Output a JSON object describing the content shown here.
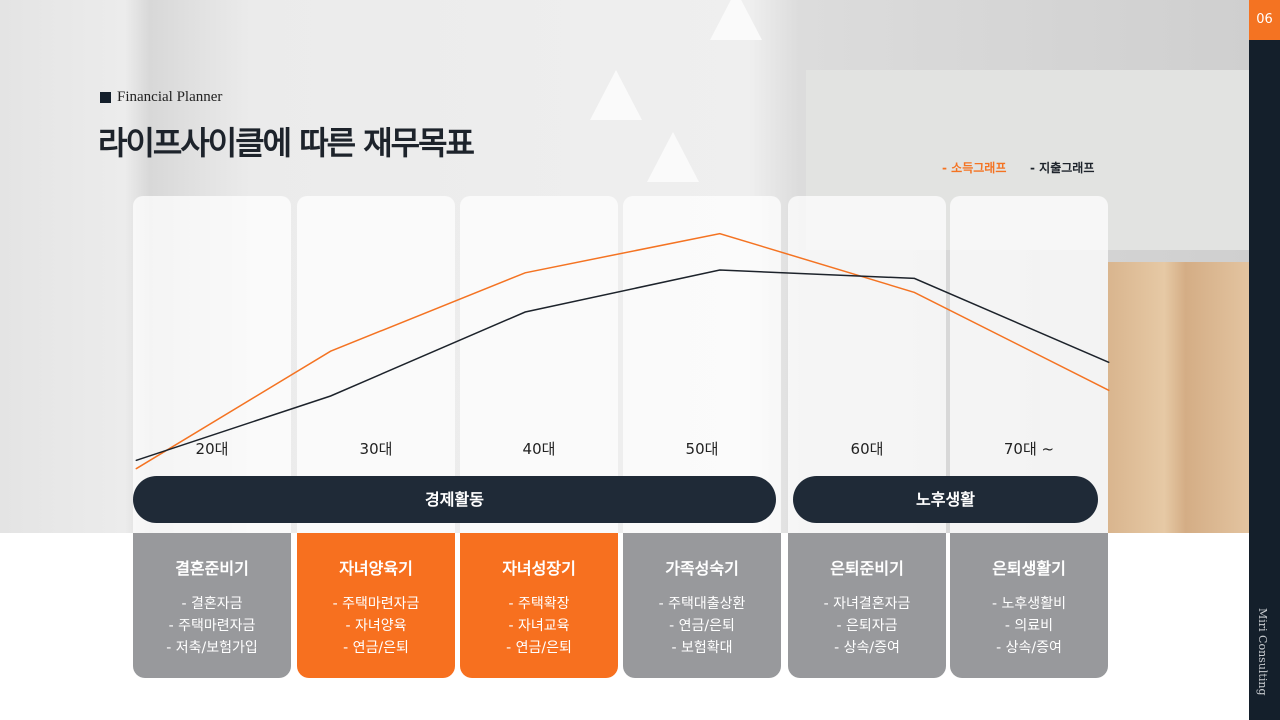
{
  "header": {
    "subtitle": "Financial Planner",
    "title": "라이프사이클에 따른 재무목표",
    "page_number": "06",
    "brand": "Miri Consulting"
  },
  "colors": {
    "accent": "#f47322",
    "dark": "#141f2b",
    "card_gray": "#98999c"
  },
  "chart_data": {
    "type": "line",
    "categories": [
      "20대",
      "30대",
      "40대",
      "50대",
      "60대",
      "70대 ~"
    ],
    "series": [
      {
        "name": "- 소득그래프",
        "color": "#f47322",
        "values": [
          4,
          46,
          74,
          88,
          67,
          32
        ]
      },
      {
        "name": "- 지출그래프",
        "color": "#1d232b",
        "values": [
          7,
          30,
          60,
          75,
          72,
          42
        ]
      }
    ],
    "ylim": [
      0,
      100
    ],
    "grid": false,
    "legend": "top-right",
    "axes_shown": false
  },
  "phases": [
    {
      "label": "경제활동"
    },
    {
      "label": "노후생활"
    }
  ],
  "stages": [
    {
      "title": "결혼준비기",
      "items": [
        "- 결혼자금",
        "- 주택마련자금",
        "- 저축/보험가입"
      ],
      "highlight": false
    },
    {
      "title": "자녀양육기",
      "items": [
        "- 주택마련자금",
        "- 자녀양육",
        "- 연금/은퇴"
      ],
      "highlight": true
    },
    {
      "title": "자녀성장기",
      "items": [
        "- 주택확장",
        "- 자녀교육",
        "- 연금/은퇴"
      ],
      "highlight": true
    },
    {
      "title": "가족성숙기",
      "items": [
        "- 주택대출상환",
        "- 연금/은퇴",
        "- 보험확대"
      ],
      "highlight": false
    },
    {
      "title": "은퇴준비기",
      "items": [
        "- 자녀결혼자금",
        "- 은퇴자금",
        "- 상속/증여"
      ],
      "highlight": false
    },
    {
      "title": "은퇴생활기",
      "items": [
        "- 노후생활비",
        "- 의료비",
        "- 상속/증여"
      ],
      "highlight": false
    }
  ]
}
